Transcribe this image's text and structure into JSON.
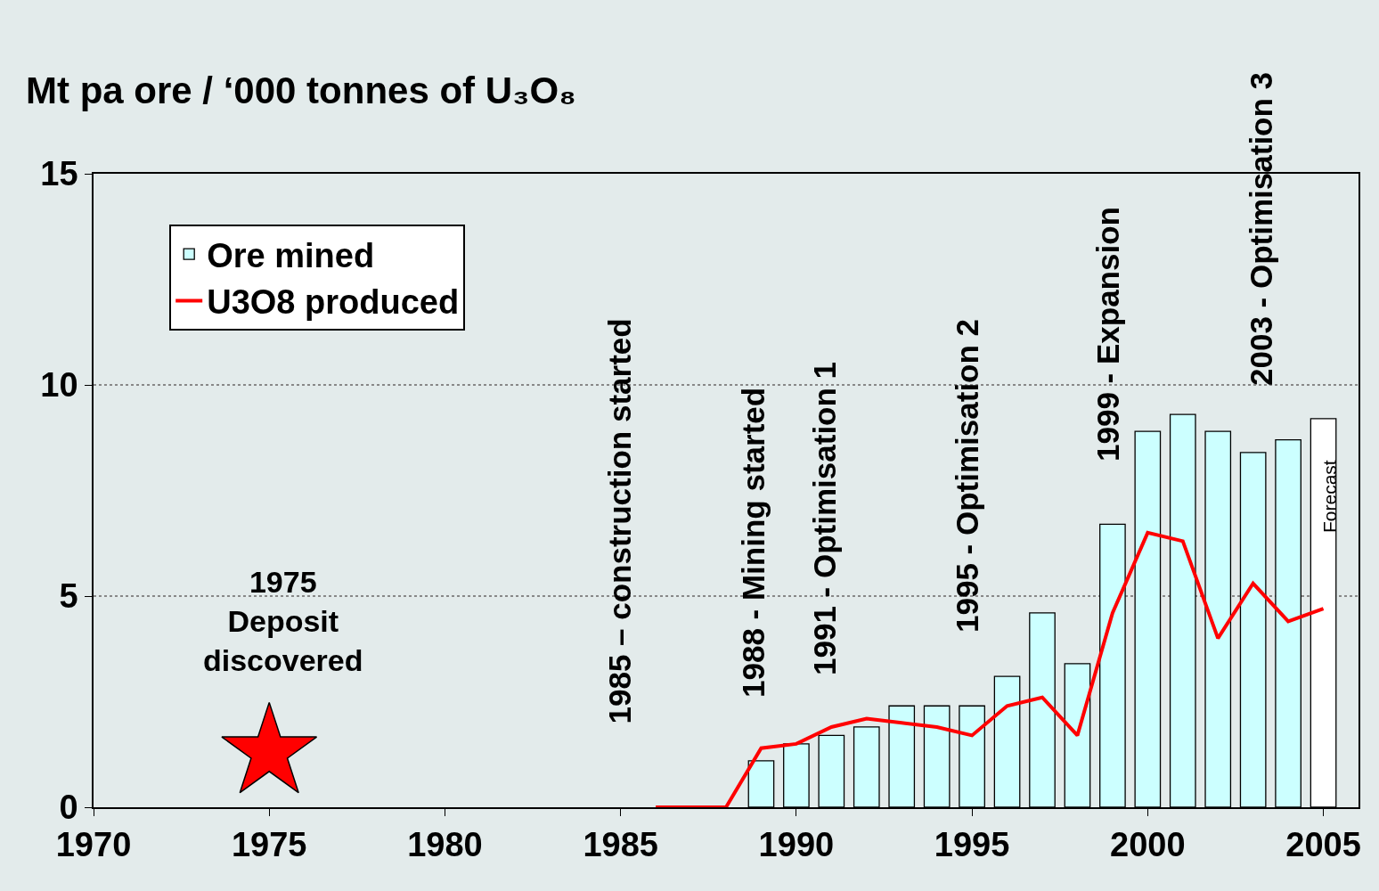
{
  "chart_data": {
    "type": "bar",
    "ylabel": "Mt pa ore / ‘000 tonnes of U₃O₈",
    "x": [
      1989,
      1990,
      1991,
      1992,
      1993,
      1994,
      1995,
      1996,
      1997,
      1998,
      1999,
      2000,
      2001,
      2002,
      2003,
      2004,
      2005
    ],
    "series": [
      {
        "name": "Ore mined",
        "colors": [
          "#ccffff",
          "#ccffff",
          "#ccffff",
          "#ccffff",
          "#ccffff",
          "#ccffff",
          "#ccffff",
          "#ccffff",
          "#ccffff",
          "#ccffff",
          "#ccffff",
          "#ccffff",
          "#ccffff",
          "#ccffff",
          "#ccffff",
          "#ccffff",
          "#ffffff"
        ],
        "values": [
          1.1,
          1.5,
          1.7,
          1.9,
          2.4,
          2.4,
          2.4,
          3.1,
          4.6,
          3.4,
          6.7,
          8.9,
          9.3,
          8.9,
          8.4,
          8.7,
          9.2
        ]
      },
      {
        "name": "U3O8 produced",
        "type": "line",
        "color": "#ff0000",
        "marker": "none",
        "x": [
          1986,
          1987,
          1988,
          1989,
          1990,
          1991,
          1992,
          1993,
          1994,
          1995,
          1996,
          1997,
          1998,
          1999,
          2000,
          2001,
          2002,
          2003,
          2004,
          2005
        ],
        "values": [
          0,
          0,
          0,
          1.4,
          1.5,
          1.9,
          2.1,
          2.0,
          1.9,
          1.7,
          2.4,
          2.6,
          1.7,
          4.6,
          6.5,
          6.3,
          4.0,
          5.3,
          4.4,
          4.7
        ]
      },
      {
        "type": "scatter",
        "color": "#ff0000",
        "marker": "star",
        "x": [
          1975
        ],
        "values": [
          1.3
        ]
      }
    ],
    "xlim": [
      1970,
      2006
    ],
    "xticks": [
      1970,
      1975,
      1980,
      1985,
      1990,
      1995,
      2000,
      2005
    ],
    "ylim": [
      0,
      15
    ],
    "yticks": [
      0,
      5,
      10,
      15
    ],
    "grid": "y",
    "legend": "top left",
    "annotations": [
      "1975\nDeposit\ndiscovered",
      "1985 – construction started",
      "1988 - Mining started",
      "1991 - Optimisation 1",
      "1995 - Optimisation 2",
      "1999 - Expansion",
      "2003 - Optimisation 3",
      "Forecast"
    ]
  }
}
